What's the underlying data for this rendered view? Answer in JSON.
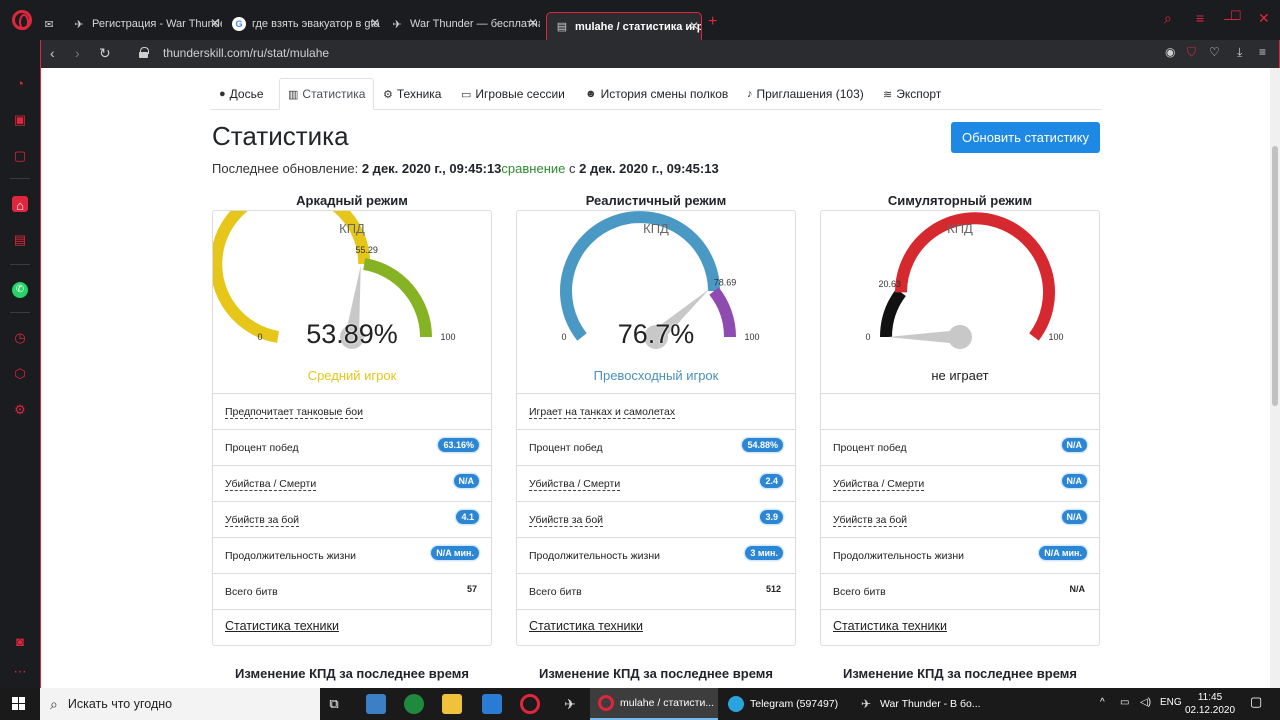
{
  "browser": {
    "tabs": [
      {
        "title": "",
        "icon": "mail-icon"
      },
      {
        "title": "Регистрация - War Thunde",
        "icon": "warthunder-icon"
      },
      {
        "title": "где взять эвакуатор в gta",
        "icon": "google-icon"
      },
      {
        "title": "War Thunder — бесплатна",
        "icon": "warthunder-icon"
      },
      {
        "title": "mulahe / статистика игрок",
        "icon": "page-icon"
      }
    ],
    "new_tab": "+",
    "url": "thunderskill.com/ru/stat/mulahe"
  },
  "nav": {
    "tabs": [
      {
        "label": "Досье",
        "icon": "user-icon"
      },
      {
        "label": "Статистика",
        "icon": "chart-icon"
      },
      {
        "label": "Техника",
        "icon": "gear-icon"
      },
      {
        "label": "Игровые сессии",
        "icon": "monitor-icon"
      },
      {
        "label": "История смены полков",
        "icon": "users-icon"
      },
      {
        "label": "Приглашения (103)",
        "icon": "bell-icon"
      },
      {
        "label": "Экспорт",
        "icon": "rss-icon"
      }
    ]
  },
  "header": {
    "title": "Статистика",
    "update_button": "Обновить статистику",
    "last_update_label": "Последнее обновление: ",
    "last_update_value": "2 дек. 2020 г., 09:45:13",
    "comparison_label": "сравнение",
    "comparison_prefix": " с ",
    "comparison_value": "2 дек. 2020 г., 09:45:13"
  },
  "modes": [
    {
      "title": "Аркадный режим",
      "kpd_label": "КПД",
      "gauge_value": "53.89%",
      "gauge_fraction": 0.5389,
      "marker_label": "55.29",
      "marker_fraction": 0.5529,
      "min": "0",
      "max": "100",
      "rating": "Средний игрок",
      "rating_color": "#e6c619",
      "preference": "Предпочитает танковые бои",
      "rows": [
        {
          "label": "Процент побед",
          "value": "63.16%",
          "badge": true
        },
        {
          "label": "Убийства / Смерти",
          "value": "N/A",
          "badge": true
        },
        {
          "label": "Убийств за бой",
          "value": "4.1",
          "badge": true
        },
        {
          "label": "Продолжительность жизни",
          "value": "N/A мин.",
          "badge": true
        },
        {
          "label": "Всего битв",
          "value": "57",
          "badge": false
        }
      ],
      "tech_link": "Статистика техники",
      "change_title": "Изменение КПД за последнее время"
    },
    {
      "title": "Реалистичный режим",
      "kpd_label": "КПД",
      "gauge_value": "76.7%",
      "gauge_fraction": 0.767,
      "marker_label": "78.69",
      "marker_fraction": 0.7869,
      "min": "0",
      "max": "100",
      "rating": "Превосходный игрок",
      "rating_color": "#4a90bd",
      "preference": "Играет на танках и самолетах",
      "rows": [
        {
          "label": "Процент побед",
          "value": "54.88%",
          "badge": true
        },
        {
          "label": "Убийства / Смерти",
          "value": "2.4",
          "badge": true
        },
        {
          "label": "Убийств за бой",
          "value": "3.9",
          "badge": true
        },
        {
          "label": "Продолжительность жизни",
          "value": "3 мин.",
          "badge": true
        },
        {
          "label": "Всего битв",
          "value": "512",
          "badge": false
        }
      ],
      "tech_link": "Статистика техники",
      "change_title": "Изменение КПД за последнее время"
    },
    {
      "title": "Симуляторный режим",
      "kpd_label": "КПД",
      "gauge_value": "",
      "gauge_fraction": 0,
      "marker_label": "20.63",
      "marker_fraction": 0.2063,
      "min": "0",
      "max": "100",
      "rating": "не играет",
      "rating_color": "#222222",
      "preference": "",
      "rows": [
        {
          "label": "Процент побед",
          "value": "N/A",
          "badge": true
        },
        {
          "label": "Убийства / Смерти",
          "value": "N/A",
          "badge": true
        },
        {
          "label": "Убийств за бой",
          "value": "N/A",
          "badge": true
        },
        {
          "label": "Продолжительность жизни",
          "value": "N/A мин.",
          "badge": true
        },
        {
          "label": "Всего битв",
          "value": "N/A",
          "badge": false
        }
      ],
      "tech_link": "Статистика техники",
      "change_title": "Изменение КПД за последнее время"
    }
  ],
  "taskbar": {
    "search_placeholder": "Искать что угодно",
    "apps": [
      {
        "label": "mulahe / статисти...",
        "icon": "opera-icon"
      },
      {
        "label": "Telegram (597497)",
        "icon": "telegram-icon"
      },
      {
        "label": "War Thunder - В бо...",
        "icon": "warthunder-icon"
      }
    ],
    "language": "ENG",
    "time": "11:45",
    "date": "02.12.2020"
  }
}
